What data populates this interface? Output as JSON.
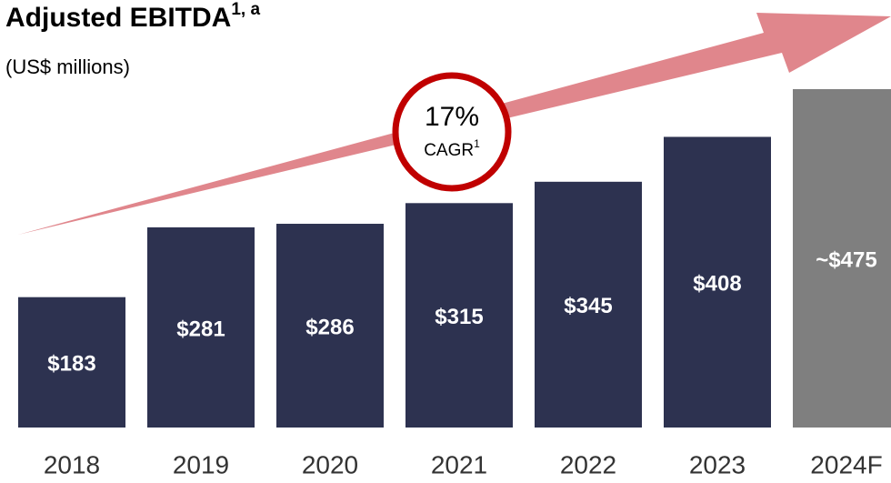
{
  "chart_data": {
    "type": "bar",
    "title": "Adjusted EBITDA",
    "title_superscript": "1, a",
    "subtitle": "(US$ millions)",
    "annotation": {
      "text": "17%",
      "label": "CAGR",
      "superscript": "1"
    },
    "categories": [
      "2018",
      "2019",
      "2020",
      "2021",
      "2022",
      "2023",
      "2024F"
    ],
    "values": [
      183,
      281,
      286,
      315,
      345,
      408,
      475
    ],
    "value_labels": [
      "$183",
      "$281",
      "$286",
      "$315",
      "$345",
      "$408",
      "~$475"
    ],
    "colors": [
      "#2d3250",
      "#2d3250",
      "#2d3250",
      "#2d3250",
      "#2d3250",
      "#2d3250",
      "#7f7f7f"
    ]
  }
}
